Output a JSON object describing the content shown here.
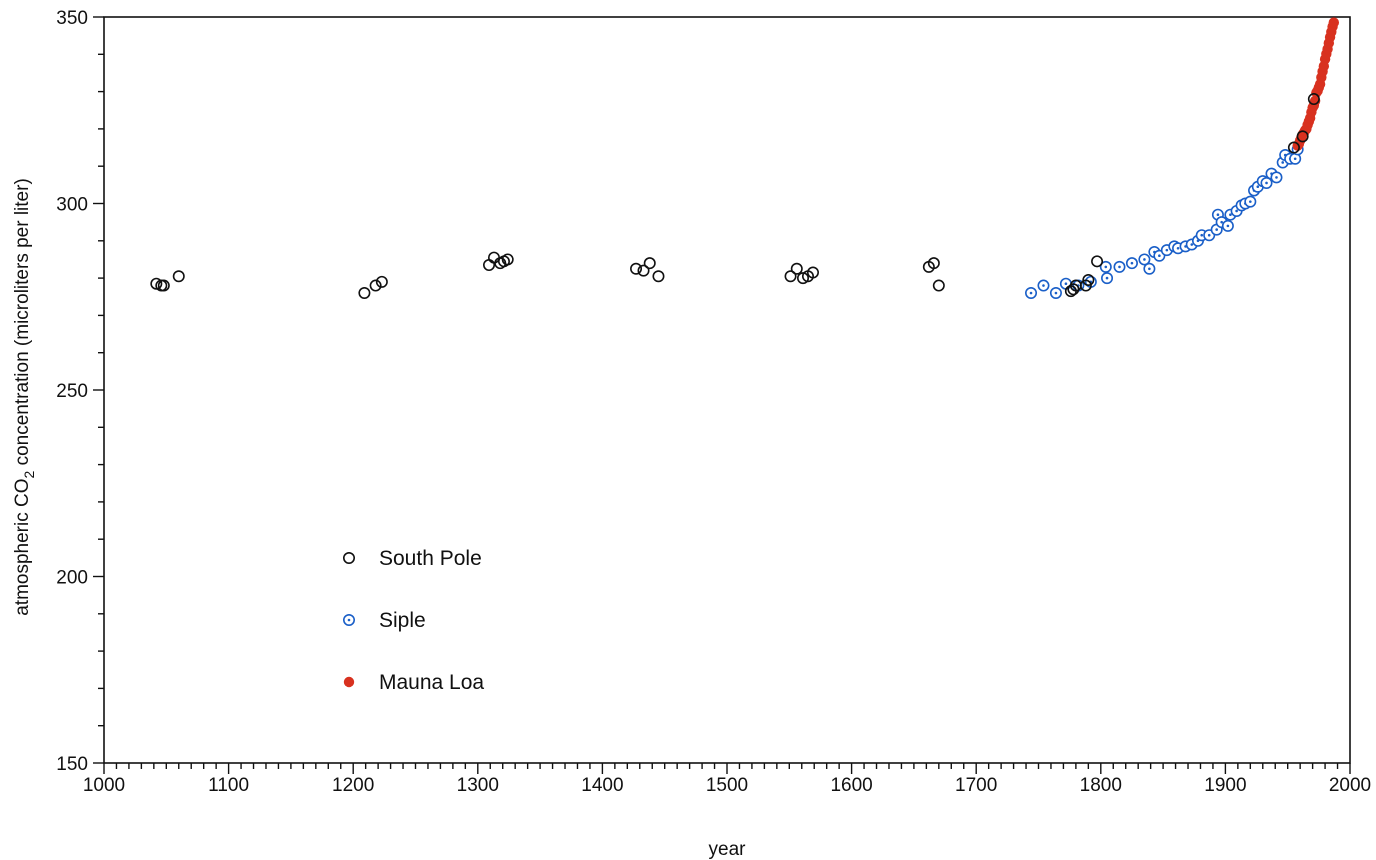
{
  "chart_data": {
    "type": "scatter",
    "title": "",
    "xlabel": "year",
    "ylabel": {
      "prefix": "atmospheric CO",
      "subscript": "2",
      "suffix": " concentration (microliters per liter)"
    },
    "xlim": [
      1000,
      2000
    ],
    "ylim": [
      150,
      350
    ],
    "x_ticks": [
      1000,
      1100,
      1200,
      1300,
      1400,
      1500,
      1600,
      1700,
      1800,
      1900,
      2000
    ],
    "y_ticks": [
      150,
      200,
      250,
      300,
      350
    ],
    "x_tick_labels": [
      "1000",
      "1100",
      "1200",
      "1300",
      "1400",
      "1500",
      "1600",
      "1700",
      "1800",
      "1900",
      "2000"
    ],
    "y_tick_labels": [
      "150",
      "200",
      "250",
      "300",
      "350"
    ],
    "grid": false,
    "legend_position": "lower-left",
    "series": [
      {
        "name": "South Pole",
        "marker": "open-circle",
        "color": "#111111",
        "points": [
          [
            1042,
            278.5
          ],
          [
            1046,
            278
          ],
          [
            1048,
            278
          ],
          [
            1060,
            280.5
          ],
          [
            1209,
            276
          ],
          [
            1218,
            278
          ],
          [
            1223,
            279
          ],
          [
            1309,
            283.5
          ],
          [
            1313,
            285.5
          ],
          [
            1318,
            284
          ],
          [
            1321,
            284.5
          ],
          [
            1324,
            285
          ],
          [
            1427,
            282.5
          ],
          [
            1433,
            282
          ],
          [
            1438,
            284
          ],
          [
            1445,
            280.5
          ],
          [
            1551,
            280.5
          ],
          [
            1556,
            282.5
          ],
          [
            1561,
            280
          ],
          [
            1565,
            280.5
          ],
          [
            1569,
            281.5
          ],
          [
            1662,
            283
          ],
          [
            1666,
            284
          ],
          [
            1670,
            278
          ],
          [
            1776,
            276.5
          ],
          [
            1778,
            277
          ],
          [
            1780,
            278
          ],
          [
            1788,
            278
          ],
          [
            1790,
            279.5
          ],
          [
            1797,
            284.5
          ],
          [
            1955,
            315
          ],
          [
            1962,
            318
          ],
          [
            1971,
            328
          ]
        ]
      },
      {
        "name": "Siple",
        "marker": "dotted-open-circle",
        "color": "#1a5fc8",
        "points": [
          [
            1744,
            276
          ],
          [
            1754,
            278
          ],
          [
            1764,
            276
          ],
          [
            1772,
            278.5
          ],
          [
            1782,
            278
          ],
          [
            1792,
            279
          ],
          [
            1804,
            283
          ],
          [
            1805,
            280
          ],
          [
            1815,
            283
          ],
          [
            1825,
            284
          ],
          [
            1835,
            285
          ],
          [
            1839,
            282.5
          ],
          [
            1843,
            287
          ],
          [
            1847,
            286
          ],
          [
            1853,
            287.5
          ],
          [
            1859,
            288.5
          ],
          [
            1862,
            288
          ],
          [
            1868,
            288.5
          ],
          [
            1873,
            289
          ],
          [
            1878,
            290
          ],
          [
            1881,
            291.5
          ],
          [
            1887,
            291.5
          ],
          [
            1893,
            293
          ],
          [
            1894,
            297
          ],
          [
            1897,
            295
          ],
          [
            1902,
            294
          ],
          [
            1904,
            297
          ],
          [
            1909,
            298
          ],
          [
            1913,
            299.5
          ],
          [
            1916,
            300
          ],
          [
            1920,
            300.5
          ],
          [
            1923,
            303.5
          ],
          [
            1926,
            304.5
          ],
          [
            1930,
            306
          ],
          [
            1933,
            305.5
          ],
          [
            1937,
            308
          ],
          [
            1941,
            307
          ],
          [
            1946,
            311
          ],
          [
            1948,
            313
          ],
          [
            1952,
            312
          ],
          [
            1956,
            312
          ],
          [
            1958,
            314.5
          ]
        ]
      },
      {
        "name": "Mauna Loa",
        "marker": "filled-circle",
        "color": "#d8311f",
        "points": [
          [
            1958,
            315.5
          ],
          [
            1959,
            316
          ],
          [
            1960,
            316.9
          ],
          [
            1961,
            317.6
          ],
          [
            1962,
            318.5
          ],
          [
            1963,
            319
          ],
          [
            1964,
            319.6
          ],
          [
            1965,
            320
          ],
          [
            1966,
            321.1
          ],
          [
            1967,
            322
          ],
          [
            1968,
            322.9
          ],
          [
            1969,
            324.5
          ],
          [
            1970,
            325.7
          ],
          [
            1971,
            326.3
          ],
          [
            1972,
            327.5
          ],
          [
            1973,
            329.7
          ],
          [
            1974,
            330.2
          ],
          [
            1975,
            331.1
          ],
          [
            1976,
            332
          ],
          [
            1977,
            333.8
          ],
          [
            1978,
            335.4
          ],
          [
            1979,
            336.8
          ],
          [
            1980,
            338.7
          ],
          [
            1981,
            340.1
          ],
          [
            1982,
            341.4
          ],
          [
            1983,
            343
          ],
          [
            1984,
            344.6
          ],
          [
            1985,
            346
          ],
          [
            1986,
            347.4
          ],
          [
            1987,
            348.5
          ]
        ]
      }
    ]
  }
}
